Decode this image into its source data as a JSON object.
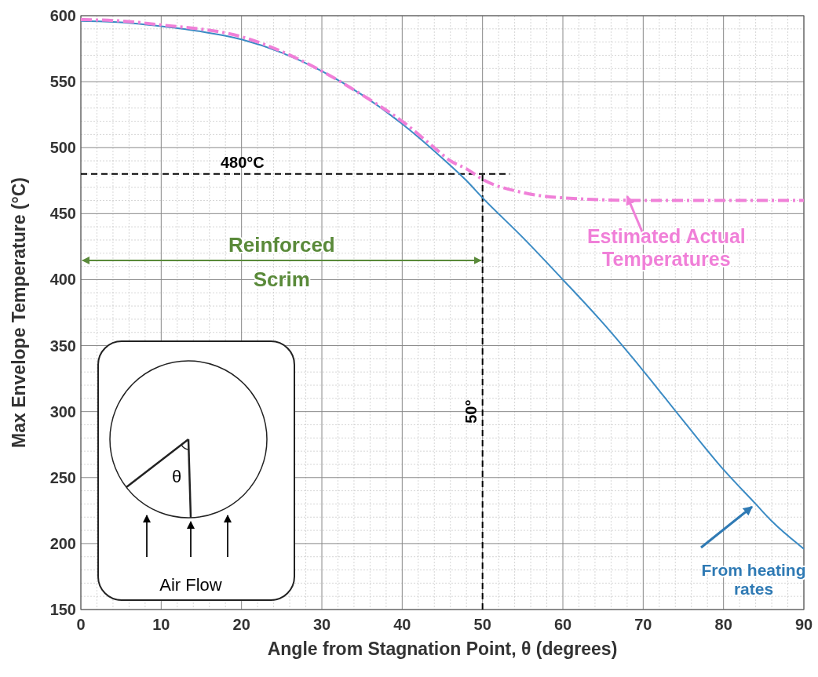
{
  "chart_data": {
    "type": "line",
    "xlabel": "Angle from Stagnation Point, θ (degrees)",
    "ylabel": "Max Envelope Temperature (°C)",
    "xlim": [
      0,
      90
    ],
    "ylim": [
      150,
      600
    ],
    "xticks": [
      0,
      10,
      20,
      30,
      40,
      50,
      60,
      70,
      80,
      90
    ],
    "yticks": [
      150,
      200,
      250,
      300,
      350,
      400,
      450,
      500,
      550,
      600
    ],
    "grid": true,
    "legend": false,
    "series": [
      {
        "color": "#3b8bc4",
        "line_style": "solid",
        "x": [
          0,
          5,
          10,
          15,
          20,
          25,
          30,
          35,
          40,
          45,
          48,
          50,
          55,
          60,
          65,
          70,
          75,
          80,
          84,
          86,
          90
        ],
        "values": [
          596,
          595,
          592,
          588,
          582,
          572,
          558,
          540,
          518,
          492,
          475,
          462,
          432,
          400,
          367,
          331,
          293,
          256,
          230,
          217,
          196
        ]
      },
      {
        "color": "#f080d8",
        "line_style": "dashed",
        "x": [
          0,
          5,
          10,
          20,
          30,
          35,
          40,
          44,
          46,
          48,
          50,
          55,
          60,
          70,
          80,
          90
        ],
        "values": [
          597,
          596,
          593,
          584,
          558,
          540,
          520,
          500,
          490,
          484,
          476,
          466,
          462,
          460,
          460,
          460
        ]
      }
    ],
    "ref_lines": [
      {
        "axis": "y",
        "value": 480,
        "label": "480°C",
        "line_style": "dashed",
        "color": "#000000"
      },
      {
        "axis": "x",
        "value": 50,
        "label": "50°",
        "line_style": "dashed",
        "color": "#000000"
      }
    ],
    "annotations": [
      "Reinforced\nScrim",
      {
        "text": "Estimated Actual\nTemperatures",
        "x": 68,
        "y": 462
      },
      "From heating\nrates",
      "θ",
      "Air Flow"
    ]
  }
}
